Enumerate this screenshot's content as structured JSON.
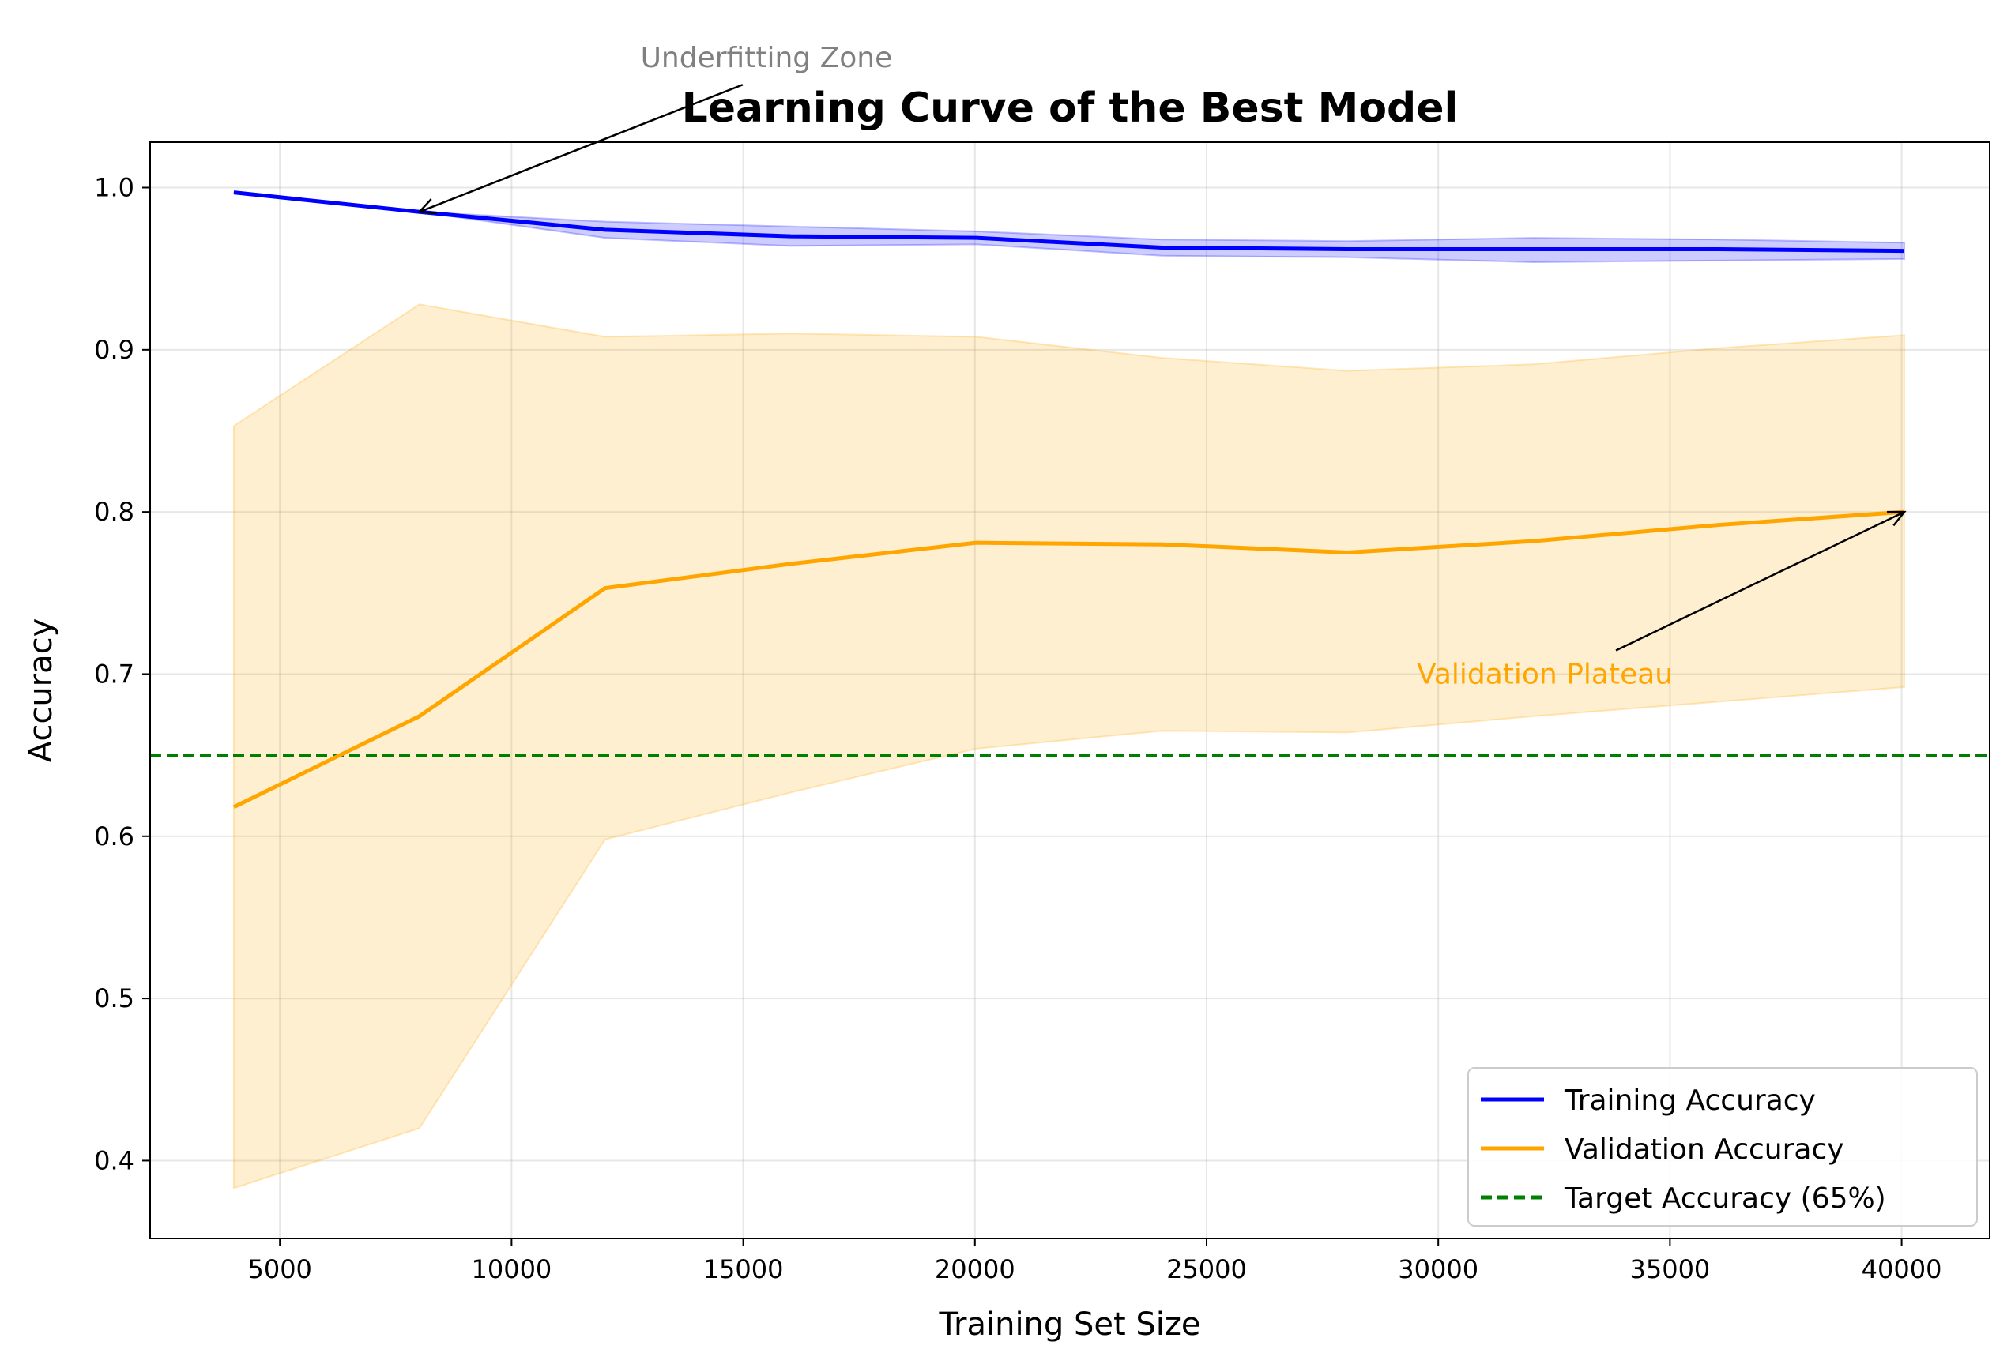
{
  "chart_data": {
    "type": "line",
    "title": "Learning Curve of the Best Model",
    "xlabel": "Training Set Size",
    "ylabel": "Accuracy",
    "xlim": [
      2200,
      41900
    ],
    "ylim": [
      0.352,
      1.028
    ],
    "xticks": [
      5000,
      10000,
      15000,
      20000,
      25000,
      30000,
      35000,
      40000
    ],
    "yticks": [
      0.4,
      0.5,
      0.6,
      0.7,
      0.8,
      0.9,
      1.0
    ],
    "grid": true,
    "legend_position": "lower-right",
    "x": [
      4005,
      8011,
      12017,
      16023,
      20029,
      24035,
      28041,
      32047,
      36053,
      40059
    ],
    "series": [
      {
        "name": "Training Accuracy",
        "color": "#0000ff",
        "style": "solid",
        "values": [
          0.997,
          0.985,
          0.974,
          0.97,
          0.969,
          0.963,
          0.962,
          0.962,
          0.962,
          0.961
        ],
        "band_lower": [
          0.997,
          0.985,
          0.969,
          0.964,
          0.965,
          0.958,
          0.957,
          0.954,
          0.955,
          0.956
        ],
        "band_upper": [
          0.997,
          0.985,
          0.979,
          0.976,
          0.973,
          0.968,
          0.967,
          0.969,
          0.968,
          0.966
        ]
      },
      {
        "name": "Validation Accuracy",
        "color": "#ffa500",
        "style": "solid",
        "values": [
          0.618,
          0.674,
          0.753,
          0.768,
          0.781,
          0.78,
          0.775,
          0.782,
          0.792,
          0.8
        ],
        "band_lower": [
          0.383,
          0.42,
          0.598,
          0.627,
          0.654,
          0.665,
          0.664,
          0.674,
          0.683,
          0.692
        ],
        "band_upper": [
          0.853,
          0.928,
          0.908,
          0.91,
          0.908,
          0.895,
          0.887,
          0.891,
          0.901,
          0.909
        ]
      }
    ],
    "reference_lines": [
      {
        "name": "Target Accuracy (65%)",
        "y": 0.65,
        "color": "#008000",
        "style": "dashed"
      }
    ],
    "annotations": [
      {
        "text": "Underfitting Zone",
        "color": "#808080",
        "text_x": 15500,
        "text_y": 1.08,
        "arrow_x": 8011,
        "arrow_y": 0.985
      },
      {
        "text": "Validation Plateau",
        "color": "#ffa500",
        "text_x": 32300,
        "text_y": 0.7,
        "arrow_x": 40059,
        "arrow_y": 0.8
      }
    ]
  }
}
